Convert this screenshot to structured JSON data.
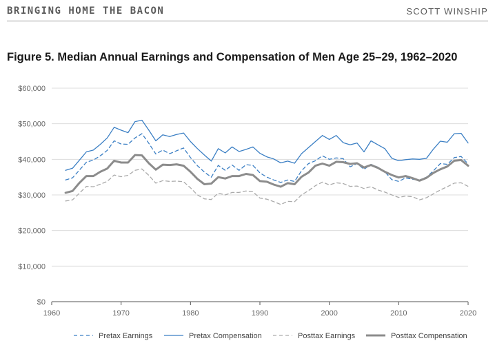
{
  "header": {
    "left": "BRINGING HOME THE BACON",
    "right": "SCOTT WINSHIP"
  },
  "chart_data": {
    "type": "line",
    "title": "Figure 5. Median Annual Earnings and Compensation of Men Age 25–29, 1962–2020",
    "xlim": [
      1960,
      2020
    ],
    "ylim": [
      0,
      60000
    ],
    "xticks": [
      "1960",
      "1970",
      "1980",
      "1990",
      "2000",
      "2010",
      "2020"
    ],
    "yticks": [
      "$0",
      "$10,000",
      "$20,000",
      "$30,000",
      "$40,000",
      "$50,000",
      "$60,000"
    ],
    "x": [
      1962,
      1963,
      1964,
      1965,
      1966,
      1967,
      1968,
      1969,
      1970,
      1971,
      1972,
      1973,
      1974,
      1975,
      1976,
      1977,
      1978,
      1979,
      1980,
      1981,
      1982,
      1983,
      1984,
      1985,
      1986,
      1987,
      1988,
      1989,
      1990,
      1991,
      1992,
      1993,
      1994,
      1995,
      1996,
      1997,
      1998,
      1999,
      2000,
      2001,
      2002,
      2003,
      2004,
      2005,
      2006,
      2007,
      2008,
      2009,
      2010,
      2011,
      2012,
      2013,
      2014,
      2015,
      2016,
      2017,
      2018,
      2019,
      2020
    ],
    "series": [
      {
        "name": "Pretax Earnings",
        "color": "#3b7fc4",
        "style": "dashed",
        "width": 1.3,
        "values": [
          34200,
          34800,
          37000,
          39200,
          39800,
          41000,
          42500,
          45200,
          44300,
          44200,
          46000,
          47200,
          44500,
          41500,
          42600,
          41600,
          42400,
          43200,
          40500,
          38200,
          36400,
          35000,
          38300,
          36900,
          38400,
          36900,
          38500,
          38300,
          36200,
          35000,
          34200,
          33500,
          34200,
          33800,
          36800,
          38800,
          39600,
          41000,
          40000,
          40400,
          40200,
          37900,
          38800,
          37200,
          38600,
          37800,
          36500,
          34300,
          33800,
          34800,
          34400,
          34200,
          35000,
          36800,
          38800,
          38600,
          40500,
          40800,
          38700
        ]
      },
      {
        "name": "Pretax Compensation",
        "color": "#3b7fc4",
        "style": "solid",
        "width": 1.3,
        "values": [
          36900,
          37500,
          39800,
          42100,
          42600,
          44200,
          46000,
          49000,
          48200,
          47500,
          50600,
          51000,
          48200,
          45200,
          46900,
          46400,
          47000,
          47400,
          45000,
          43000,
          41200,
          39500,
          43000,
          41800,
          43500,
          42200,
          42800,
          43500,
          41700,
          40700,
          40100,
          39000,
          39500,
          38900,
          41600,
          43300,
          45000,
          46700,
          45600,
          46700,
          44700,
          44100,
          44600,
          42100,
          45200,
          44100,
          43000,
          40300,
          39600,
          39900,
          40100,
          40000,
          40300,
          42900,
          45100,
          44800,
          47200,
          47300,
          44600
        ]
      },
      {
        "name": "Posttax Earnings",
        "color": "#aaaaaa",
        "style": "dashed",
        "width": 1.3,
        "values": [
          28300,
          28600,
          30500,
          32400,
          32300,
          33000,
          33800,
          35600,
          35100,
          35500,
          36900,
          37300,
          35500,
          33300,
          34000,
          33800,
          33900,
          33700,
          32000,
          30000,
          28900,
          28700,
          30500,
          30000,
          30700,
          30700,
          31100,
          30900,
          29100,
          28800,
          28100,
          27300,
          28200,
          28100,
          30000,
          31200,
          32600,
          33600,
          32800,
          33400,
          33200,
          32400,
          32500,
          31800,
          32300,
          31400,
          30800,
          30000,
          29300,
          29700,
          29500,
          28600,
          29200,
          30300,
          31400,
          32300,
          33300,
          33400,
          32400
        ]
      },
      {
        "name": "Posttax Compensation",
        "color": "#8c8c8c",
        "style": "solid",
        "width": 3,
        "values": [
          30600,
          31100,
          33400,
          35300,
          35300,
          36500,
          37400,
          39600,
          39100,
          39100,
          41200,
          41100,
          38900,
          37100,
          38500,
          38400,
          38600,
          38200,
          36500,
          34500,
          33000,
          33200,
          35000,
          34600,
          35300,
          35300,
          35900,
          35600,
          33900,
          33700,
          32900,
          32300,
          33300,
          33000,
          35100,
          36300,
          38200,
          38800,
          38200,
          39300,
          39200,
          38700,
          38900,
          37700,
          38400,
          37600,
          36500,
          35600,
          34900,
          35300,
          34700,
          34000,
          34800,
          36200,
          37200,
          38000,
          39600,
          39800,
          38200
        ]
      }
    ],
    "legend_position": "bottom"
  }
}
